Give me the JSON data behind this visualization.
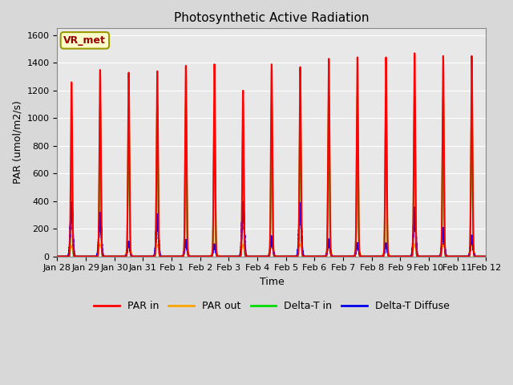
{
  "title": "Photosynthetic Active Radiation",
  "ylabel": "PAR (umol/m2/s)",
  "xlabel": "Time",
  "ylim": [
    0,
    1650
  ],
  "yticks": [
    0,
    200,
    400,
    600,
    800,
    1000,
    1200,
    1400,
    1600
  ],
  "background_color": "#d8d8d8",
  "plot_bg_color": "#e8e8e8",
  "colors": {
    "PAR_in": "#ff0000",
    "PAR_out": "#ffa500",
    "Delta_T_in": "#00dd00",
    "Delta_T_Diffuse": "#0000ee"
  },
  "legend_labels": [
    "PAR in",
    "PAR out",
    "Delta-T in",
    "Delta-T Diffuse"
  ],
  "watermark_text": "VR_met",
  "watermark_bg": "#ffffcc",
  "watermark_border": "#999900",
  "watermark_text_color": "#990000",
  "xtick_labels": [
    "Jan 28",
    "Jan 29",
    "Jan 30",
    "Jan 31",
    "Feb 1",
    "Feb 2",
    "Feb 3",
    "Feb 4",
    "Feb 5",
    "Feb 6",
    "Feb 7",
    "Feb 8",
    "Feb 9",
    "Feb 10",
    "Feb 11",
    "Feb 12"
  ],
  "num_days": 15,
  "peak_PAR_in": [
    1260,
    1350,
    1330,
    1340,
    1380,
    1390,
    1200,
    1390,
    1370,
    1430,
    1440,
    1440,
    1470,
    1450,
    1450
  ],
  "peak_PAR_out": [
    80,
    90,
    90,
    85,
    85,
    90,
    85,
    85,
    90,
    90,
    90,
    90,
    90,
    90,
    90
  ],
  "peak_Delta_T_in": [
    580,
    1080,
    1070,
    1090,
    1100,
    1100,
    940,
    1100,
    1100,
    1160,
    1160,
    1160,
    1160,
    1160,
    1160
  ],
  "peak_Delta_T_Diffuse": [
    370,
    305,
    100,
    280,
    110,
    80,
    375,
    130,
    350,
    115,
    90,
    90,
    325,
    190,
    140
  ],
  "title_fontsize": 11,
  "axis_label_fontsize": 9,
  "tick_fontsize": 8,
  "legend_fontsize": 9,
  "linewidth": 1.5
}
